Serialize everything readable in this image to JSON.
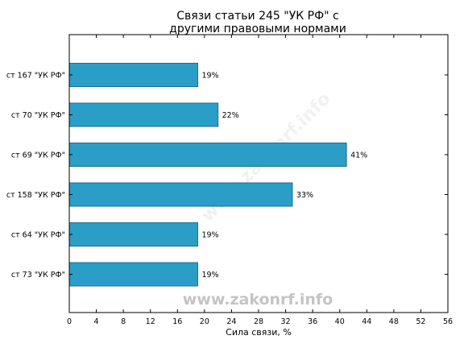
{
  "chart_data": {
    "type": "bar",
    "orientation": "horizontal",
    "title": [
      "Связи статьи 245 \"УК РФ\" с",
      "другими правовыми нормами"
    ],
    "xlabel": "Сила связи, %",
    "ylabel": "",
    "xlim": [
      0,
      56
    ],
    "xticks": [
      0,
      4,
      8,
      12,
      16,
      20,
      24,
      28,
      32,
      36,
      40,
      44,
      48,
      52,
      56
    ],
    "categories": [
      "ст 167 \"УК РФ\"",
      "ст 70 \"УК РФ\"",
      "ст 69 \"УК РФ\"",
      "ст 158 \"УК РФ\"",
      "ст 64 \"УК РФ\"",
      "ст 73 \"УК РФ\""
    ],
    "values": [
      19,
      22,
      41,
      33,
      19,
      19
    ],
    "value_labels": [
      "19%",
      "22%",
      "41%",
      "33%",
      "19%",
      "19%"
    ],
    "bar_color": "#2a9ec6",
    "bar_edge_color": "#1b6f8f",
    "grid": false,
    "legend": "none",
    "watermark": "www.zakonrf.info"
  }
}
